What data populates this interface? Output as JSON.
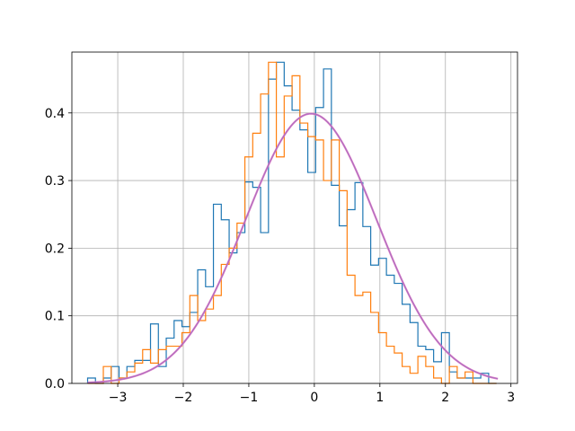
{
  "chart_data": {
    "type": "histogram",
    "title": "",
    "xlabel": "",
    "ylabel": "",
    "xlim": [
      -3.7,
      3.1
    ],
    "ylim": [
      0,
      0.49
    ],
    "x_ticks": [
      -3,
      -2,
      -1,
      0,
      1,
      2,
      3
    ],
    "x_tick_labels": [
      "−3",
      "−2",
      "−1",
      "0",
      "1",
      "2",
      "3"
    ],
    "y_ticks": [
      0.0,
      0.1,
      0.2,
      0.3,
      0.4
    ],
    "y_tick_labels": [
      "0.0",
      "0.1",
      "0.2",
      "0.3",
      "0.4"
    ],
    "grid": true,
    "histtype": "step",
    "bin_edges": [
      -3.46,
      -3.34,
      -3.22,
      -3.1,
      -2.98,
      -2.86,
      -2.74,
      -2.62,
      -2.5,
      -2.38,
      -2.26,
      -2.14,
      -2.02,
      -1.9,
      -1.78,
      -1.66,
      -1.54,
      -1.42,
      -1.3,
      -1.18,
      -1.06,
      -0.94,
      -0.82,
      -0.7,
      -0.58,
      -0.46,
      -0.34,
      -0.22,
      -0.1,
      0.02,
      0.14,
      0.26,
      0.38,
      0.5,
      0.62,
      0.74,
      0.86,
      0.98,
      1.1,
      1.22,
      1.34,
      1.46,
      1.58,
      1.7,
      1.82,
      1.94,
      2.06,
      2.18,
      2.3,
      2.42,
      2.54,
      2.66,
      2.78
    ],
    "series": [
      {
        "color": "#1f77b4",
        "values": [
          0.008,
          0.0,
          0.008,
          0.025,
          0.008,
          0.025,
          0.034,
          0.034,
          0.088,
          0.025,
          0.067,
          0.093,
          0.084,
          0.105,
          0.168,
          0.143,
          0.265,
          0.242,
          0.193,
          0.223,
          0.298,
          0.29,
          0.223,
          0.45,
          0.475,
          0.44,
          0.404,
          0.375,
          0.312,
          0.408,
          0.465,
          0.293,
          0.233,
          0.257,
          0.297,
          0.232,
          0.175,
          0.185,
          0.16,
          0.148,
          0.117,
          0.09,
          0.055,
          0.05,
          0.032,
          0.075,
          0.017,
          0.008,
          0.008,
          0.008,
          0.015,
          0.0
        ]
      },
      {
        "color": "#ff7f0e",
        "values": [
          0.0,
          0.0,
          0.025,
          0.0,
          0.008,
          0.017,
          0.03,
          0.05,
          0.03,
          0.05,
          0.055,
          0.055,
          0.075,
          0.13,
          0.093,
          0.11,
          0.13,
          0.176,
          0.2,
          0.237,
          0.335,
          0.37,
          0.428,
          0.475,
          0.335,
          0.425,
          0.455,
          0.385,
          0.365,
          0.36,
          0.3,
          0.36,
          0.285,
          0.16,
          0.13,
          0.135,
          0.105,
          0.075,
          0.055,
          0.045,
          0.025,
          0.015,
          0.04,
          0.025,
          0.008,
          0.0,
          0.025,
          0.008,
          0.017,
          0.0,
          0.0,
          0.0
        ]
      }
    ],
    "curves": [
      {
        "type": "normal_pdf",
        "mu": -0.05,
        "sigma": 1.0,
        "x_range": [
          -3.46,
          2.8
        ],
        "color": "#e377c2",
        "width": 2.2,
        "opacity": 0.9
      },
      {
        "type": "normal_pdf",
        "mu": -0.05,
        "sigma": 1.0,
        "x_range": [
          -3.46,
          2.8
        ],
        "color": "#9467bd",
        "width": 1.2,
        "opacity": 0.7
      }
    ]
  }
}
